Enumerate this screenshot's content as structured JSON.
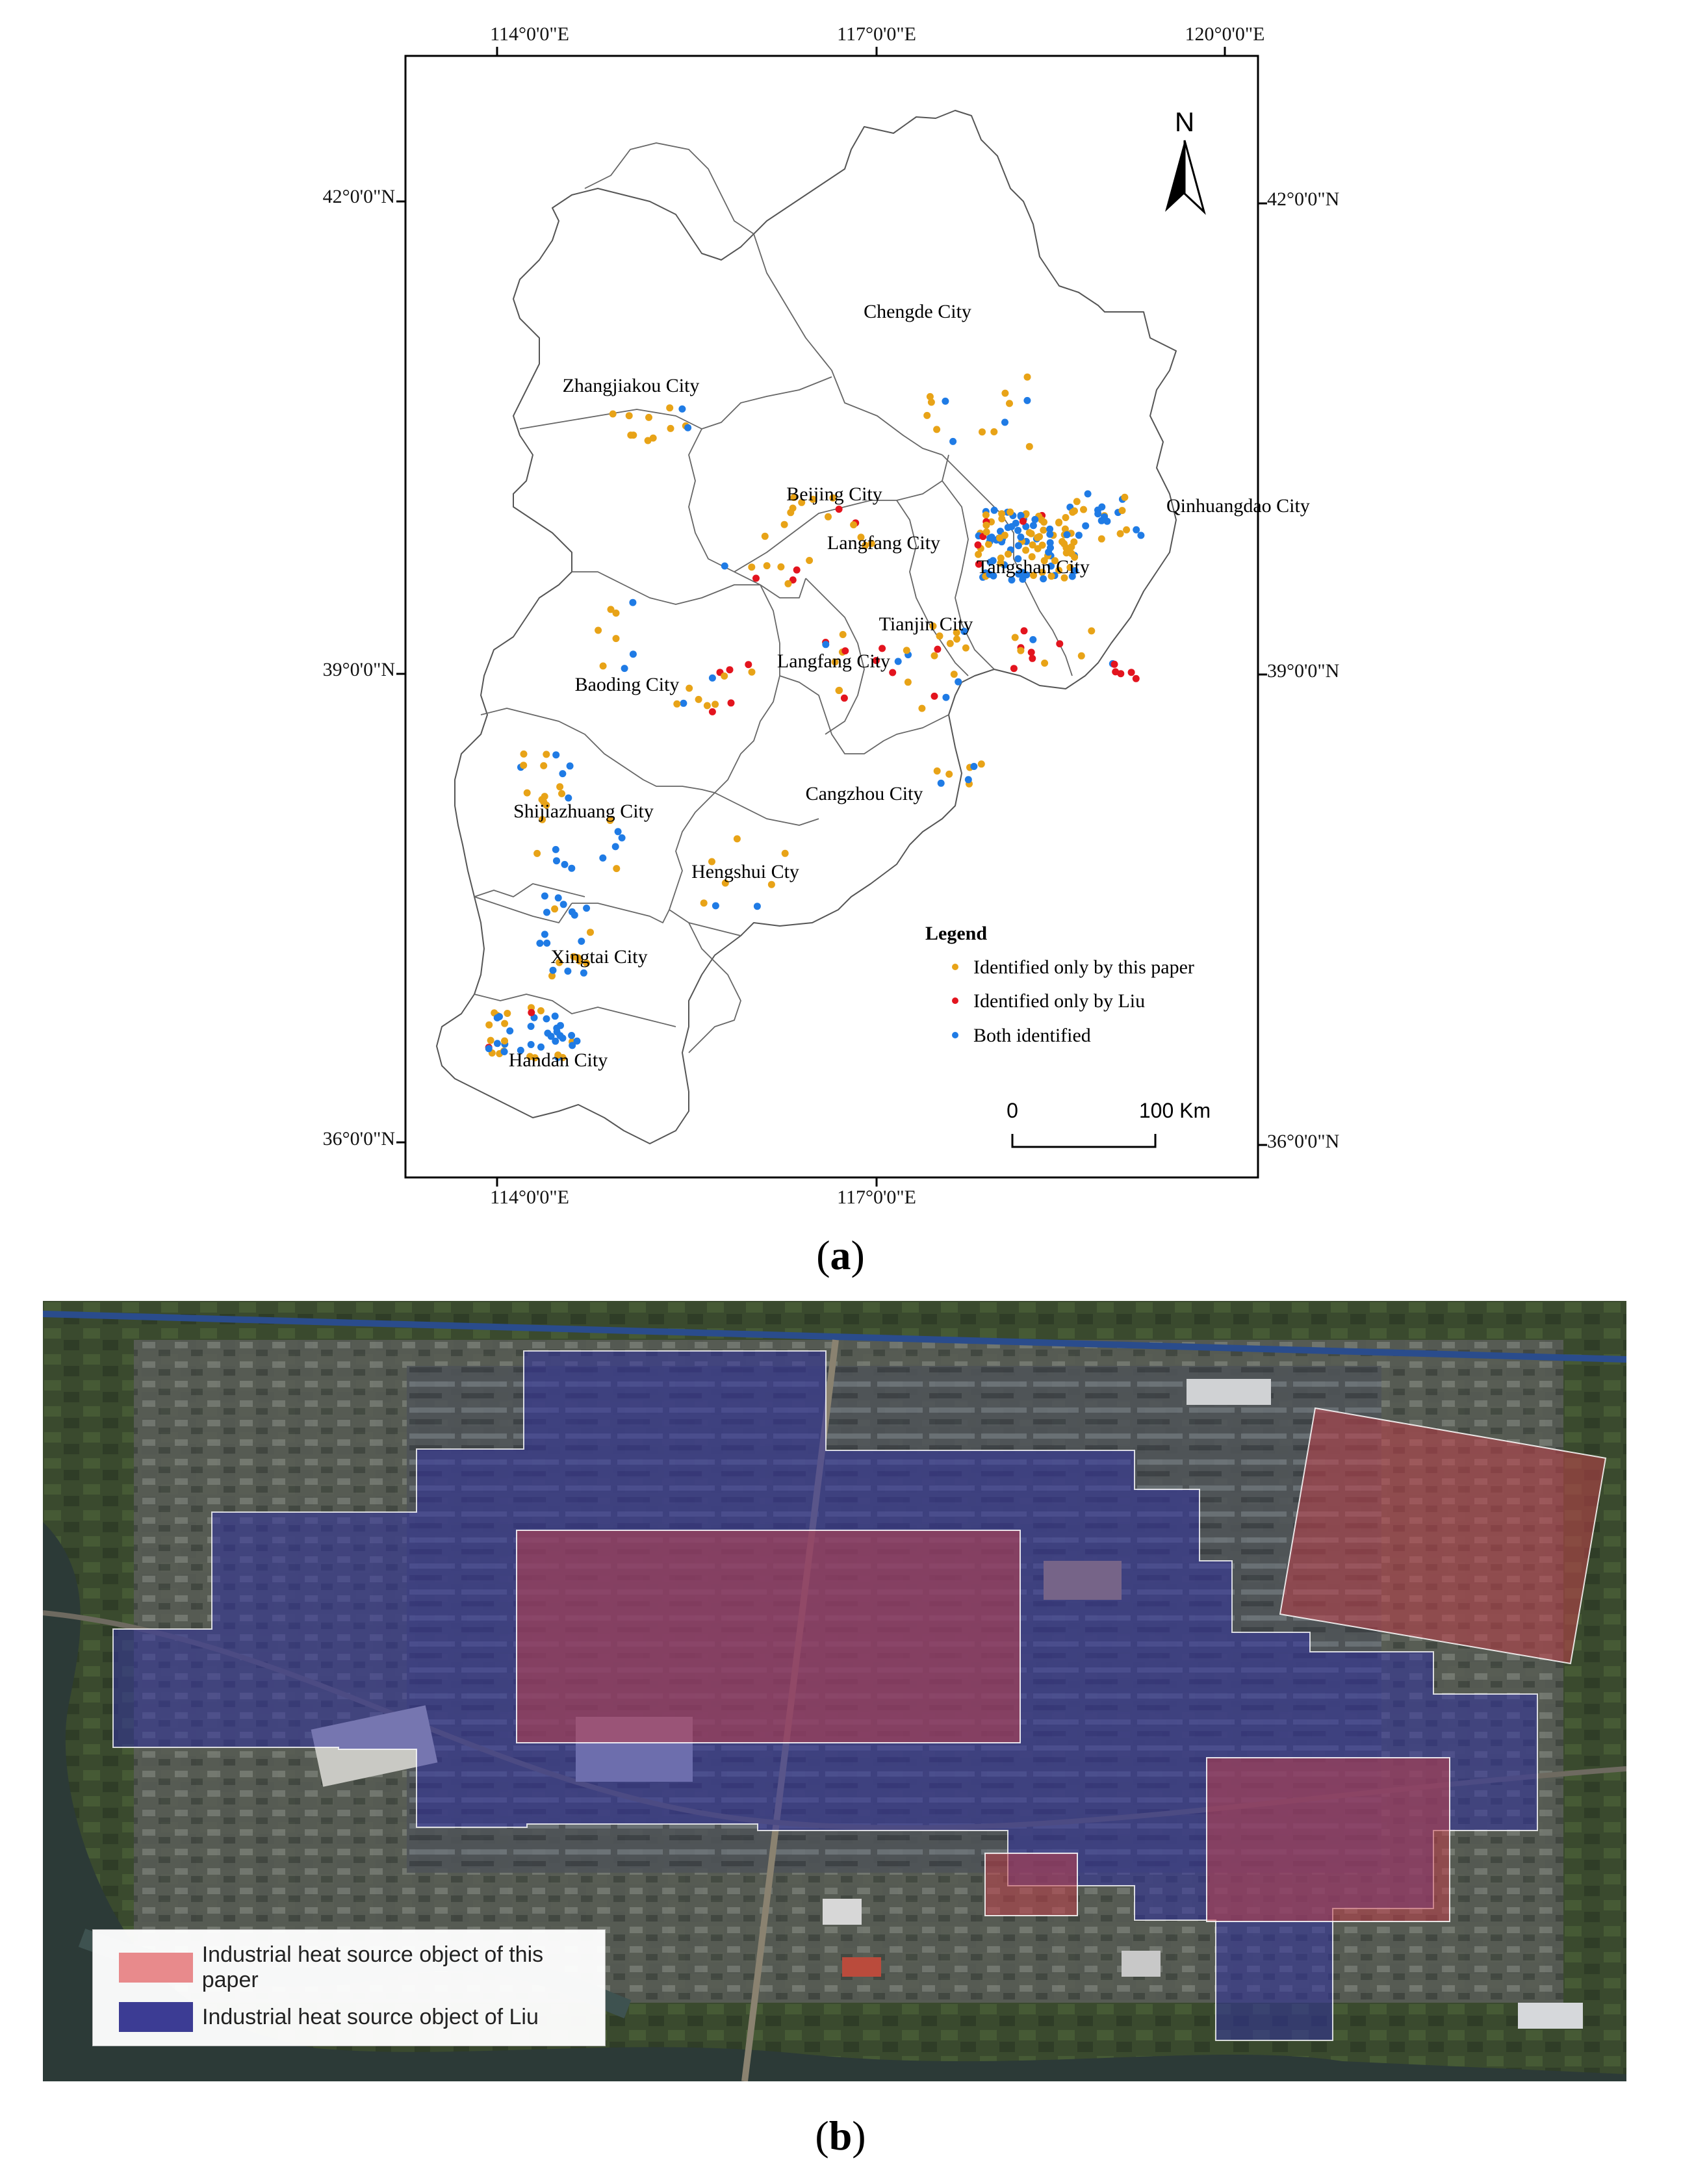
{
  "panel_a": {
    "caption_letter": "a",
    "top_lon_labels": [
      "114°0'0\"E",
      "117°0'0\"E",
      "120°0'0\"E"
    ],
    "bottom_lon_labels": [
      "114°0'0\"E",
      "117°0'0\"E"
    ],
    "left_lat_labels": [
      "42°0'0\"N",
      "39°0'0\"N",
      "36°0'0\"N"
    ],
    "right_lat_labels": [
      "42°0'0\"N",
      "39°0'0\"N",
      "36°0'0\"N"
    ],
    "north_arrow_label": "N",
    "city_labels": [
      {
        "name": "Chengde City"
      },
      {
        "name": "Zhangjiakou City"
      },
      {
        "name": "Beijing City"
      },
      {
        "name": "Langfang City"
      },
      {
        "name": "Qinhuangdao City"
      },
      {
        "name": "Tangshan City"
      },
      {
        "name": "Tianjin City"
      },
      {
        "name": "Langfang City"
      },
      {
        "name": "Baoding City"
      },
      {
        "name": "Cangzhou City"
      },
      {
        "name": "Shijiazhuang City"
      },
      {
        "name": "Hengshui Cty"
      },
      {
        "name": "Xingtai City"
      },
      {
        "name": "Handan City"
      }
    ],
    "legend": {
      "title": "Legend",
      "items": [
        {
          "label": "Identified only by this paper",
          "color": "#E8A317"
        },
        {
          "label": "Identified only by Liu",
          "color": "#E3141E"
        },
        {
          "label": "Both identified",
          "color": "#1F7BE5"
        }
      ]
    },
    "scale_bar": {
      "start_label": "0",
      "end_label": "100 Km"
    }
  },
  "panel_b": {
    "caption_letter": "b",
    "legend": [
      {
        "label": "Industrial heat source object of this paper",
        "color": "#E88A8C"
      },
      {
        "label": "Industrial heat source object of Liu",
        "color": "#3C3C94"
      }
    ]
  }
}
